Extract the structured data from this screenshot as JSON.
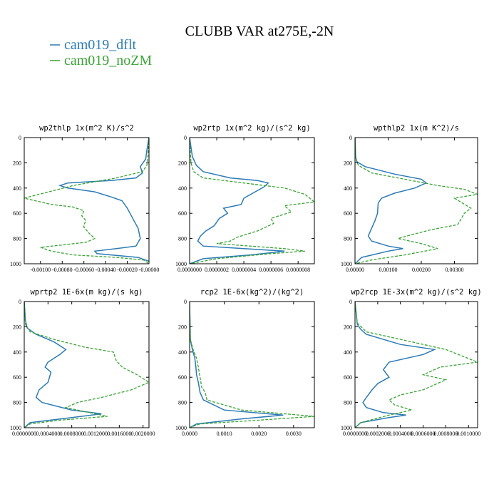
{
  "figure": {
    "title": "CLUBB VAR at275E,-2N",
    "legend": [
      {
        "label": "cam019_dflt",
        "color": "#2c7bb6",
        "dash": "solid"
      },
      {
        "label": "cam019_noZM",
        "color": "#3aa335",
        "dash": "dashed"
      }
    ]
  },
  "chart_data": [
    {
      "type": "line",
      "title": "wp2thlp   1x(m^2 K)/s^2",
      "xlim": [
        -0.00115,
        0.0
      ],
      "ylim": [
        1000,
        0
      ],
      "xticks": [
        "-0.00100",
        "-0.00080",
        "-0.00060",
        "-0.00040",
        "-0.00020",
        "-0.00000"
      ],
      "xtick_values": [
        -0.001,
        -0.0008,
        -0.0006,
        -0.0004,
        -0.0002,
        0.0
      ],
      "yticks": [
        0,
        200,
        400,
        600,
        800,
        1000
      ],
      "series": [
        {
          "name": "cam019_dflt",
          "x": [
            0,
            -2e-05,
            -3e-05,
            -8e-05,
            -6e-05,
            -0.00012,
            -0.00035,
            -0.00075,
            -0.00082,
            -0.00075,
            -0.0005,
            -0.00035,
            -0.00025,
            -0.0002,
            -0.00015,
            -0.0001,
            -8e-05,
            -0.00012,
            -0.0003,
            -0.0005,
            -0.00048,
            -0.0001,
            0
          ],
          "y": [
            0,
            100,
            170,
            230,
            280,
            320,
            340,
            360,
            380,
            400,
            430,
            470,
            500,
            560,
            640,
            720,
            800,
            860,
            880,
            900,
            920,
            950,
            980
          ]
        },
        {
          "name": "cam019_noZM",
          "x": [
            0,
            -1e-05,
            -2e-05,
            -6e-05,
            -0.0003,
            -0.0007,
            -0.00115,
            -0.0009,
            -0.0007,
            -0.0006,
            -0.00062,
            -0.00058,
            -0.0006,
            -0.0006,
            -0.00055,
            -0.0005,
            -0.00058,
            -0.001,
            -0.0009,
            -0.0007,
            -0.0003,
            -5e-05,
            0
          ],
          "y": [
            0,
            150,
            220,
            270,
            320,
            380,
            480,
            530,
            550,
            580,
            620,
            660,
            690,
            710,
            760,
            800,
            830,
            870,
            900,
            930,
            950,
            970,
            1000
          ]
        }
      ]
    },
    {
      "type": "line",
      "title": "wp2rtp   1x(m^2 kg)/(s^2 kg)",
      "xlim": [
        0.0,
        0.00092
      ],
      "ylim": [
        1000,
        0
      ],
      "xticks": [
        "0.0000000",
        "0.0000002",
        "0.0000004",
        "0.0000006",
        "0.0000008"
      ],
      "xtick_values": [
        0.0,
        0.0002,
        0.0004,
        0.0006,
        0.0008
      ],
      "yticks": [
        0,
        200,
        400,
        600,
        800,
        1000
      ],
      "series": [
        {
          "name": "cam019_dflt",
          "x": [
            0,
            2e-05,
            5e-05,
            0.0001,
            0.0003,
            0.0005,
            0.00058,
            0.00055,
            0.0004,
            0.00038,
            0.00025,
            0.00028,
            0.00022,
            0.00018,
            0.00012,
            8e-05,
            6e-05,
            0.0001,
            0.0004,
            0.0007,
            0.00045,
            0.0001,
            0
          ],
          "y": [
            0,
            150,
            220,
            270,
            320,
            340,
            360,
            390,
            480,
            530,
            560,
            600,
            640,
            700,
            740,
            780,
            820,
            860,
            880,
            900,
            930,
            960,
            1000
          ]
        },
        {
          "name": "cam019_noZM",
          "x": [
            0,
            1e-05,
            3e-05,
            0.0001,
            0.0004,
            0.0007,
            0.00085,
            0.00092,
            0.0007,
            0.00075,
            0.0006,
            0.00062,
            0.0005,
            0.00035,
            0.0003,
            0.0002,
            0.0007,
            0.00085,
            0.0006,
            0.0002,
            0
          ],
          "y": [
            0,
            200,
            270,
            320,
            360,
            400,
            450,
            510,
            540,
            590,
            640,
            680,
            740,
            790,
            820,
            840,
            880,
            900,
            920,
            960,
            1000
          ]
        }
      ]
    },
    {
      "type": "line",
      "title": "wpthlp2   1x(m K^2)/s",
      "xlim": [
        0.0,
        0.0037
      ],
      "ylim": [
        1000,
        0
      ],
      "xticks": [
        "0.00000",
        "0.00100",
        "0.00200",
        "0.00300"
      ],
      "xtick_values": [
        0.0,
        0.001,
        0.002,
        0.003
      ],
      "yticks": [
        0,
        200,
        400,
        600,
        800,
        1000
      ],
      "series": [
        {
          "name": "cam019_dflt",
          "x": [
            0,
            2e-05,
            5e-05,
            0.0003,
            0.0012,
            0.002,
            0.00215,
            0.0018,
            0.0012,
            0.0008,
            0.0007,
            0.00068,
            0.0006,
            0.0005,
            0.0004,
            0.0005,
            0.001,
            0.00145,
            0.001,
            0.0002,
            0
          ],
          "y": [
            0,
            150,
            190,
            230,
            290,
            330,
            360,
            400,
            440,
            480,
            520,
            600,
            660,
            720,
            780,
            820,
            860,
            880,
            900,
            950,
            1000
          ]
        },
        {
          "name": "cam019_noZM",
          "x": [
            0,
            2e-05,
            0.0001,
            0.0005,
            0.0015,
            0.0025,
            0.0033,
            0.0037,
            0.003,
            0.0035,
            0.0033,
            0.0031,
            0.0023,
            0.0017,
            0.0013,
            0.002,
            0.0025,
            0.0015,
            0.0005,
            0
          ],
          "y": [
            0,
            160,
            220,
            280,
            330,
            380,
            410,
            450,
            480,
            560,
            600,
            690,
            730,
            770,
            800,
            840,
            880,
            930,
            970,
            1000
          ]
        }
      ]
    },
    {
      "type": "line",
      "title": "wprtp2   1E-6x(m kg)/(s kg)",
      "xlim": [
        0.0,
        0.0021
      ],
      "ylim": [
        1000,
        0
      ],
      "xticks": [
        "0.0000000",
        "0.0004000",
        "0.0008000",
        "0.0012000",
        "0.0016000",
        "0.0020000"
      ],
      "xtick_values": [
        0.0,
        0.0004,
        0.0008,
        0.0012,
        0.0016,
        0.002
      ],
      "yticks": [
        0,
        200,
        400,
        600,
        800,
        1000
      ],
      "series": [
        {
          "name": "cam019_dflt",
          "x": [
            0,
            2e-05,
            5e-05,
            0.0002,
            0.0005,
            0.0007,
            0.0006,
            0.0004,
            0.00035,
            0.00045,
            0.0004,
            0.00025,
            0.0002,
            0.0003,
            0.0008,
            0.0013,
            0.0008,
            0.0001,
            0
          ],
          "y": [
            0,
            150,
            210,
            260,
            320,
            380,
            420,
            480,
            520,
            560,
            640,
            700,
            760,
            800,
            860,
            890,
            920,
            960,
            1000
          ]
        },
        {
          "name": "cam019_noZM",
          "x": [
            0,
            2e-05,
            0.0001,
            0.0005,
            0.001,
            0.0015,
            0.00155,
            0.00165,
            0.0019,
            0.0021,
            0.0018,
            0.0013,
            0.0009,
            0.0007,
            0.0011,
            0.0014,
            0.0006,
            0.0001,
            0
          ],
          "y": [
            0,
            180,
            240,
            300,
            360,
            400,
            470,
            520,
            580,
            640,
            700,
            760,
            800,
            840,
            880,
            910,
            940,
            970,
            1000
          ]
        }
      ]
    },
    {
      "type": "line",
      "title": "rcp2   1E-6x(kg^2)/(kg^2)",
      "xlim": [
        0.0,
        0.0036
      ],
      "ylim": [
        1000,
        0
      ],
      "xticks": [
        "0.0000",
        "0.0010",
        "0.0020",
        "0.0030"
      ],
      "xtick_values": [
        0.0,
        0.001,
        0.002,
        0.003
      ],
      "yticks": [
        0,
        200,
        400,
        600,
        800,
        1000
      ],
      "series": [
        {
          "name": "cam019_dflt",
          "x": [
            0,
            2e-05,
            8e-05,
            0.00015,
            0.00018,
            0.0002,
            0.00025,
            0.0003,
            0.0004,
            0.001,
            0.0027,
            0.0015,
            0.0002,
            0
          ],
          "y": [
            0,
            300,
            380,
            450,
            520,
            580,
            640,
            720,
            780,
            860,
            900,
            930,
            970,
            1000
          ]
        },
        {
          "name": "cam019_noZM",
          "x": [
            0,
            2e-05,
            0.0001,
            0.0002,
            0.00025,
            0.0003,
            0.00035,
            0.00045,
            0.0005,
            0.0015,
            0.0036,
            0.002,
            0.0003,
            0
          ],
          "y": [
            0,
            300,
            380,
            450,
            520,
            600,
            680,
            720,
            780,
            860,
            910,
            940,
            970,
            1000
          ]
        }
      ]
    },
    {
      "type": "line",
      "title": "wp2rcp   1E-3x(m^2 kg)/(s^2 kg)",
      "xlim": [
        0.0,
        0.00108
      ],
      "ylim": [
        1000,
        0
      ],
      "xticks": [
        "0.0000000",
        "0.0002000",
        "0.0004000",
        "0.0006000",
        "0.0008000",
        "0.0010000"
      ],
      "xtick_values": [
        0.0,
        0.0002,
        0.0004,
        0.0006,
        0.0008,
        0.001
      ],
      "yticks": [
        0,
        200,
        400,
        600,
        800,
        1000
      ],
      "series": [
        {
          "name": "cam019_dflt",
          "x": [
            0,
            2e-05,
            5e-05,
            0.0001,
            0.0004,
            0.0007,
            0.0006,
            0.0003,
            0.00025,
            0.0003,
            0.0002,
            0.00015,
            0.0001,
            7e-05,
            0.0001,
            0.00025,
            0.00045,
            0.0003,
            5e-05,
            0
          ],
          "y": [
            0,
            180,
            220,
            260,
            340,
            380,
            420,
            480,
            540,
            600,
            650,
            700,
            760,
            800,
            840,
            880,
            900,
            920,
            960,
            1000
          ]
        },
        {
          "name": "cam019_noZM",
          "x": [
            0,
            2e-05,
            0.0001,
            0.0005,
            0.0008,
            0.00108,
            0.00075,
            0.0006,
            0.0008,
            0.0007,
            0.0006,
            0.0004,
            0.0003,
            0.00035,
            0.0005,
            0.0003,
            5e-05,
            0
          ],
          "y": [
            0,
            170,
            240,
            320,
            380,
            480,
            520,
            580,
            620,
            660,
            700,
            740,
            780,
            820,
            860,
            900,
            960,
            1000
          ]
        }
      ]
    }
  ]
}
